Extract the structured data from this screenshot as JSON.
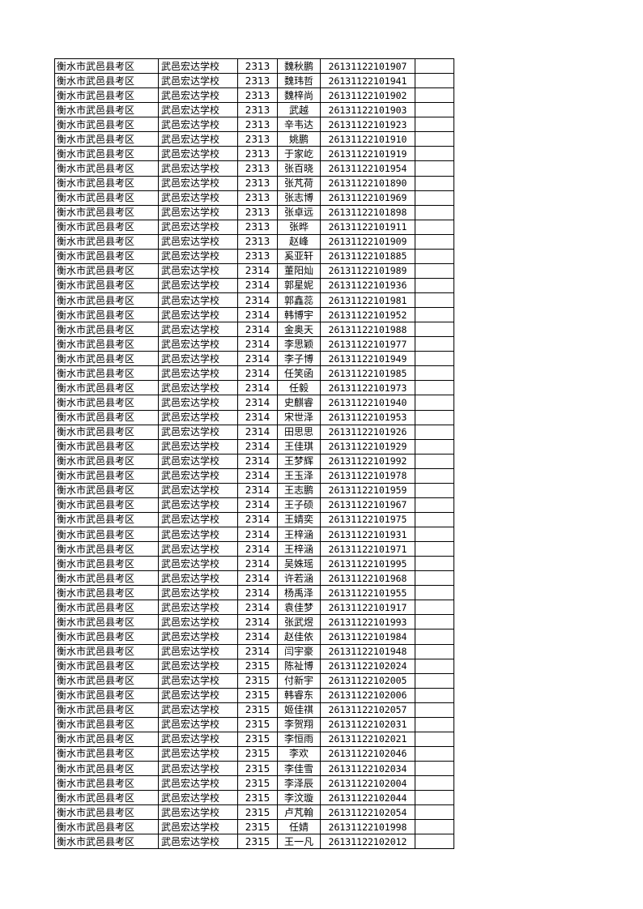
{
  "rows": [
    [
      "衡水市武邑县考区",
      "武邑宏达学校",
      "2313",
      "魏秋鹏",
      "26131122101907",
      ""
    ],
    [
      "衡水市武邑县考区",
      "武邑宏达学校",
      "2313",
      "魏玮哲",
      "26131122101941",
      ""
    ],
    [
      "衡水市武邑县考区",
      "武邑宏达学校",
      "2313",
      "魏梓尚",
      "26131122101902",
      ""
    ],
    [
      "衡水市武邑县考区",
      "武邑宏达学校",
      "2313",
      "武越",
      "26131122101903",
      ""
    ],
    [
      "衡水市武邑县考区",
      "武邑宏达学校",
      "2313",
      "辛韦达",
      "26131122101923",
      ""
    ],
    [
      "衡水市武邑县考区",
      "武邑宏达学校",
      "2313",
      "姚鹏",
      "26131122101910",
      ""
    ],
    [
      "衡水市武邑县考区",
      "武邑宏达学校",
      "2313",
      "于家屹",
      "26131122101919",
      ""
    ],
    [
      "衡水市武邑县考区",
      "武邑宏达学校",
      "2313",
      "张百晓",
      "26131122101954",
      ""
    ],
    [
      "衡水市武邑县考区",
      "武邑宏达学校",
      "2313",
      "张芃荷",
      "26131122101890",
      ""
    ],
    [
      "衡水市武邑县考区",
      "武邑宏达学校",
      "2313",
      "张志博",
      "26131122101969",
      ""
    ],
    [
      "衡水市武邑县考区",
      "武邑宏达学校",
      "2313",
      "张卓远",
      "26131122101898",
      ""
    ],
    [
      "衡水市武邑县考区",
      "武邑宏达学校",
      "2313",
      "张晔",
      "26131122101911",
      ""
    ],
    [
      "衡水市武邑县考区",
      "武邑宏达学校",
      "2313",
      "赵峰",
      "26131122101909",
      ""
    ],
    [
      "衡水市武邑县考区",
      "武邑宏达学校",
      "2313",
      "奚亚轩",
      "26131122101885",
      ""
    ],
    [
      "衡水市武邑县考区",
      "武邑宏达学校",
      "2314",
      "董阳灿",
      "26131122101989",
      ""
    ],
    [
      "衡水市武邑县考区",
      "武邑宏达学校",
      "2314",
      "郭星妮",
      "26131122101936",
      ""
    ],
    [
      "衡水市武邑县考区",
      "武邑宏达学校",
      "2314",
      "郭鑫蕊",
      "26131122101981",
      ""
    ],
    [
      "衡水市武邑县考区",
      "武邑宏达学校",
      "2314",
      "韩博宇",
      "26131122101952",
      ""
    ],
    [
      "衡水市武邑县考区",
      "武邑宏达学校",
      "2314",
      "金奥天",
      "26131122101988",
      ""
    ],
    [
      "衡水市武邑县考区",
      "武邑宏达学校",
      "2314",
      "李思颖",
      "26131122101977",
      ""
    ],
    [
      "衡水市武邑县考区",
      "武邑宏达学校",
      "2314",
      "李子博",
      "26131122101949",
      ""
    ],
    [
      "衡水市武邑县考区",
      "武邑宏达学校",
      "2314",
      "任笑函",
      "26131122101985",
      ""
    ],
    [
      "衡水市武邑县考区",
      "武邑宏达学校",
      "2314",
      "任毅",
      "26131122101973",
      ""
    ],
    [
      "衡水市武邑县考区",
      "武邑宏达学校",
      "2314",
      "史麒睿",
      "26131122101940",
      ""
    ],
    [
      "衡水市武邑县考区",
      "武邑宏达学校",
      "2314",
      "宋世泽",
      "26131122101953",
      ""
    ],
    [
      "衡水市武邑县考区",
      "武邑宏达学校",
      "2314",
      "田思思",
      "26131122101926",
      ""
    ],
    [
      "衡水市武邑县考区",
      "武邑宏达学校",
      "2314",
      "王佳琪",
      "26131122101929",
      ""
    ],
    [
      "衡水市武邑县考区",
      "武邑宏达学校",
      "2314",
      "王梦辉",
      "26131122101992",
      ""
    ],
    [
      "衡水市武邑县考区",
      "武邑宏达学校",
      "2314",
      "王玉泽",
      "26131122101978",
      ""
    ],
    [
      "衡水市武邑县考区",
      "武邑宏达学校",
      "2314",
      "王志鹏",
      "26131122101959",
      ""
    ],
    [
      "衡水市武邑县考区",
      "武邑宏达学校",
      "2314",
      "王子硕",
      "26131122101967",
      ""
    ],
    [
      "衡水市武邑县考区",
      "武邑宏达学校",
      "2314",
      "王婧奕",
      "26131122101975",
      ""
    ],
    [
      "衡水市武邑县考区",
      "武邑宏达学校",
      "2314",
      "王梓涵",
      "26131122101931",
      ""
    ],
    [
      "衡水市武邑县考区",
      "武邑宏达学校",
      "2314",
      "王梓涵",
      "26131122101971",
      ""
    ],
    [
      "衡水市武邑县考区",
      "武邑宏达学校",
      "2314",
      "吴姝瑶",
      "26131122101995",
      ""
    ],
    [
      "衡水市武邑县考区",
      "武邑宏达学校",
      "2314",
      "许若涵",
      "26131122101968",
      ""
    ],
    [
      "衡水市武邑县考区",
      "武邑宏达学校",
      "2314",
      "杨禹泽",
      "26131122101955",
      ""
    ],
    [
      "衡水市武邑县考区",
      "武邑宏达学校",
      "2314",
      "袁佳梦",
      "26131122101917",
      ""
    ],
    [
      "衡水市武邑县考区",
      "武邑宏达学校",
      "2314",
      "张武煜",
      "26131122101993",
      ""
    ],
    [
      "衡水市武邑县考区",
      "武邑宏达学校",
      "2314",
      "赵佳依",
      "26131122101984",
      ""
    ],
    [
      "衡水市武邑县考区",
      "武邑宏达学校",
      "2314",
      "闫宇豪",
      "26131122101948",
      ""
    ],
    [
      "衡水市武邑县考区",
      "武邑宏达学校",
      "2315",
      "陈祉博",
      "26131122102024",
      ""
    ],
    [
      "衡水市武邑县考区",
      "武邑宏达学校",
      "2315",
      "付新宇",
      "26131122102005",
      ""
    ],
    [
      "衡水市武邑县考区",
      "武邑宏达学校",
      "2315",
      "韩睿东",
      "26131122102006",
      ""
    ],
    [
      "衡水市武邑县考区",
      "武邑宏达学校",
      "2315",
      "姬佳祺",
      "26131122102057",
      ""
    ],
    [
      "衡水市武邑县考区",
      "武邑宏达学校",
      "2315",
      "李贺翔",
      "26131122102031",
      ""
    ],
    [
      "衡水市武邑县考区",
      "武邑宏达学校",
      "2315",
      "李恒雨",
      "26131122102021",
      ""
    ],
    [
      "衡水市武邑县考区",
      "武邑宏达学校",
      "2315",
      "李欢",
      "26131122102046",
      ""
    ],
    [
      "衡水市武邑县考区",
      "武邑宏达学校",
      "2315",
      "李佳雪",
      "26131122102034",
      ""
    ],
    [
      "衡水市武邑县考区",
      "武邑宏达学校",
      "2315",
      "李泽辰",
      "26131122102004",
      ""
    ],
    [
      "衡水市武邑县考区",
      "武邑宏达学校",
      "2315",
      "李汶璇",
      "26131122102044",
      ""
    ],
    [
      "衡水市武邑县考区",
      "武邑宏达学校",
      "2315",
      "卢芃翰",
      "26131122102054",
      ""
    ],
    [
      "衡水市武邑县考区",
      "武邑宏达学校",
      "2315",
      "任婧",
      "26131122101998",
      ""
    ],
    [
      "衡水市武邑县考区",
      "武邑宏达学校",
      "2315",
      "王一凡",
      "26131122102012",
      ""
    ]
  ]
}
